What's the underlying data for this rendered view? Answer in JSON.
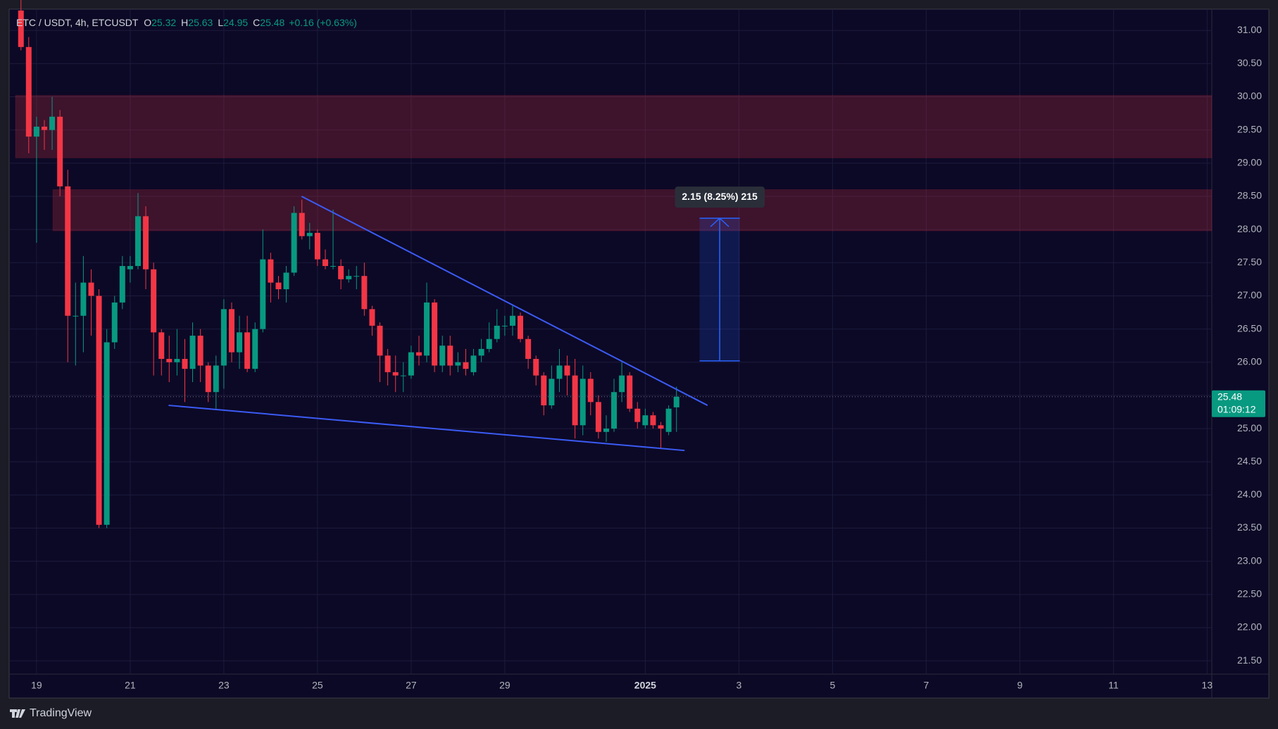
{
  "chart_data": {
    "type": "candlestick",
    "title": "ETC / USDT, 4h, ETCUSDT",
    "ohlc_labels": [
      "O",
      "H",
      "L",
      "C"
    ],
    "change_label": "+0.16 (+0.63%)",
    "countdown": "01:09:12",
    "watermark": "TradingView",
    "up_color": "#089981",
    "down_color": "#f23645",
    "line_color": "#3b5bf5",
    "grid": true,
    "x": [
      18.667,
      18.833,
      19,
      19.167,
      19.333,
      19.5,
      19.667,
      19.833,
      20,
      20.167,
      20.333,
      20.5,
      20.667,
      20.833,
      21,
      21.167,
      21.333,
      21.5,
      21.667,
      21.833,
      22,
      22.167,
      22.333,
      22.5,
      22.667,
      22.833,
      23,
      23.167,
      23.333,
      23.5,
      23.667,
      23.833,
      24,
      24.167,
      24.333,
      24.5,
      24.667,
      24.833,
      25,
      25.167,
      25.333,
      25.5,
      25.667,
      25.833,
      26,
      26.167,
      26.333,
      26.5,
      26.667,
      26.833,
      27,
      27.167,
      27.333,
      27.5,
      27.667,
      27.833,
      28,
      28.167,
      28.333,
      28.5,
      28.667,
      28.833,
      29,
      29.167,
      29.333,
      29.5,
      29.667,
      29.833,
      30,
      30.167,
      30.333,
      30.5,
      30.667,
      30.833,
      31,
      31.167,
      31.333,
      31.5,
      31.667,
      31.833,
      32,
      32.167,
      32.333,
      32.5,
      32.667
    ],
    "open": [
      31.3,
      30.75,
      29.4,
      29.55,
      29.5,
      29.7,
      28.65,
      26.7,
      26.7,
      27.2,
      27.0,
      23.55,
      26.3,
      26.9,
      27.4,
      27.45,
      28.2,
      27.4,
      26.45,
      26.05,
      26.0,
      26.05,
      25.9,
      26.4,
      25.95,
      25.55,
      25.95,
      26.8,
      26.15,
      26.45,
      25.9,
      26.5,
      27.55,
      27.2,
      27.1,
      27.35,
      28.25,
      27.9,
      27.95,
      27.55,
      27.45,
      27.45,
      27.25,
      27.3,
      27.3,
      26.8,
      26.55,
      26.1,
      25.85,
      25.8,
      25.8,
      26.15,
      26.1,
      26.9,
      25.95,
      26.25,
      25.95,
      26.0,
      25.85,
      26.1,
      26.2,
      26.35,
      26.55,
      26.55,
      26.7,
      26.35,
      26.05,
      25.8,
      25.35,
      25.75,
      25.95,
      25.8,
      25.05,
      25.75,
      25.4,
      24.95,
      25.0,
      25.55,
      25.8,
      25.3,
      25.05,
      25.2,
      25.05,
      24.95,
      25.32
    ],
    "high": [
      31.5,
      30.9,
      29.7,
      29.65,
      30.0,
      29.8,
      28.9,
      27.2,
      27.6,
      27.4,
      27.1,
      26.5,
      27.0,
      27.6,
      27.6,
      28.55,
      28.35,
      27.5,
      26.5,
      26.4,
      26.5,
      26.35,
      26.6,
      26.5,
      26.0,
      26.1,
      26.95,
      26.9,
      26.7,
      26.7,
      26.6,
      28.0,
      27.65,
      27.3,
      27.45,
      28.35,
      28.45,
      28.1,
      28.0,
      27.7,
      28.3,
      27.55,
      27.4,
      27.45,
      27.5,
      26.85,
      26.6,
      26.2,
      26.1,
      26.0,
      26.25,
      26.4,
      27.2,
      26.95,
      26.4,
      26.4,
      26.15,
      26.2,
      26.2,
      26.35,
      26.6,
      26.8,
      26.7,
      26.85,
      26.75,
      26.4,
      26.1,
      25.85,
      25.95,
      26.2,
      26.1,
      26.05,
      25.95,
      25.85,
      25.5,
      25.2,
      25.75,
      26.0,
      25.85,
      25.4,
      25.3,
      25.25,
      25.1,
      25.35,
      25.63
    ],
    "low": [
      30.7,
      29.15,
      27.8,
      29.2,
      29.2,
      28.5,
      26.0,
      25.95,
      26.15,
      26.4,
      23.5,
      23.5,
      26.2,
      26.8,
      27.2,
      27.4,
      27.1,
      25.8,
      25.8,
      25.7,
      25.8,
      25.4,
      25.7,
      25.7,
      25.4,
      25.3,
      25.6,
      26.0,
      25.9,
      25.85,
      25.85,
      26.45,
      26.9,
      26.95,
      26.9,
      27.3,
      27.85,
      27.7,
      27.45,
      27.4,
      27.4,
      27.1,
      27.2,
      27.1,
      26.7,
      26.4,
      25.7,
      25.65,
      25.55,
      25.55,
      25.75,
      25.95,
      26.0,
      25.85,
      25.85,
      25.8,
      25.85,
      25.8,
      25.8,
      26.0,
      26.15,
      26.3,
      26.4,
      26.4,
      26.3,
      25.9,
      25.65,
      25.2,
      25.3,
      25.55,
      25.5,
      24.85,
      24.9,
      25.2,
      24.85,
      24.8,
      24.95,
      25.4,
      25.25,
      25.0,
      25.0,
      25.0,
      24.7,
      24.9,
      24.95
    ],
    "close": [
      30.75,
      29.4,
      29.55,
      29.5,
      29.7,
      28.65,
      26.7,
      26.7,
      27.2,
      27.0,
      23.55,
      26.3,
      26.9,
      27.45,
      27.45,
      28.2,
      27.4,
      26.45,
      26.05,
      26.0,
      26.05,
      25.9,
      26.4,
      25.95,
      25.55,
      25.95,
      26.8,
      26.15,
      26.45,
      25.9,
      26.5,
      27.55,
      27.2,
      27.1,
      27.35,
      28.25,
      27.9,
      27.95,
      27.55,
      27.45,
      27.45,
      27.25,
      27.3,
      27.3,
      26.8,
      26.55,
      26.1,
      25.85,
      25.8,
      25.8,
      26.15,
      26.1,
      26.9,
      25.95,
      26.25,
      25.95,
      26.0,
      25.9,
      26.1,
      26.2,
      26.35,
      26.55,
      26.55,
      26.7,
      26.35,
      26.05,
      25.8,
      25.35,
      25.75,
      25.95,
      25.8,
      25.05,
      25.75,
      25.4,
      24.95,
      25.0,
      25.55,
      25.8,
      25.3,
      25.1,
      25.2,
      25.05,
      25.0,
      25.3,
      25.48
    ],
    "zones": [
      {
        "x1": 18.55,
        "y1": 29.08,
        "y2": 30.02
      },
      {
        "x1": 19.35,
        "y1": 27.98,
        "y2": 28.6
      }
    ],
    "trendlines": [
      {
        "x": [
          24.66,
          33.33
        ],
        "y": [
          28.5,
          25.35
        ]
      },
      {
        "x": [
          21.82,
          32.84
        ],
        "y": [
          25.35,
          24.67
        ]
      }
    ],
    "measure": {
      "x": [
        33.16,
        34.02
      ],
      "from": 26.02,
      "to": 28.17,
      "label": "2.15 (8.25%) 215"
    },
    "xlim": [
      18.43,
      44.1
    ],
    "ylim": [
      21.3,
      31.31
    ],
    "xticks": [
      19,
      21,
      23,
      25,
      27,
      29,
      {
        "value": 32,
        "label": "2025"
      },
      {
        "value": 34,
        "label": "3"
      },
      {
        "value": 36,
        "label": "5"
      },
      {
        "value": 38,
        "label": "7"
      },
      {
        "value": 40,
        "label": "9"
      },
      {
        "value": 42,
        "label": "11"
      },
      {
        "value": 44,
        "label": "13"
      }
    ],
    "yticks": [
      {
        "value": 21.5,
        "label": "21.50"
      },
      {
        "value": 22,
        "label": "22.00"
      },
      {
        "value": 22.5,
        "label": "22.50"
      },
      {
        "value": 23,
        "label": "23.00"
      },
      {
        "value": 23.5,
        "label": "23.50"
      },
      {
        "value": 24,
        "label": "24.00"
      },
      {
        "value": 24.5,
        "label": "24.50"
      },
      {
        "value": 25,
        "label": "25.00"
      },
      {
        "value": 25.5,
        "label": "25.50"
      },
      {
        "value": 26,
        "label": "26.00"
      },
      {
        "value": 26.5,
        "label": "26.50"
      },
      {
        "value": 27,
        "label": "27.00"
      },
      {
        "value": 27.5,
        "label": "27.50"
      },
      {
        "value": 28,
        "label": "28.00"
      },
      {
        "value": 28.5,
        "label": "28.50"
      },
      {
        "value": 29,
        "label": "29.00"
      },
      {
        "value": 29.5,
        "label": "29.50"
      },
      {
        "value": 30,
        "label": "30.00"
      },
      {
        "value": 30.5,
        "label": "30.50"
      },
      {
        "value": 31,
        "label": "31.00"
      }
    ]
  }
}
